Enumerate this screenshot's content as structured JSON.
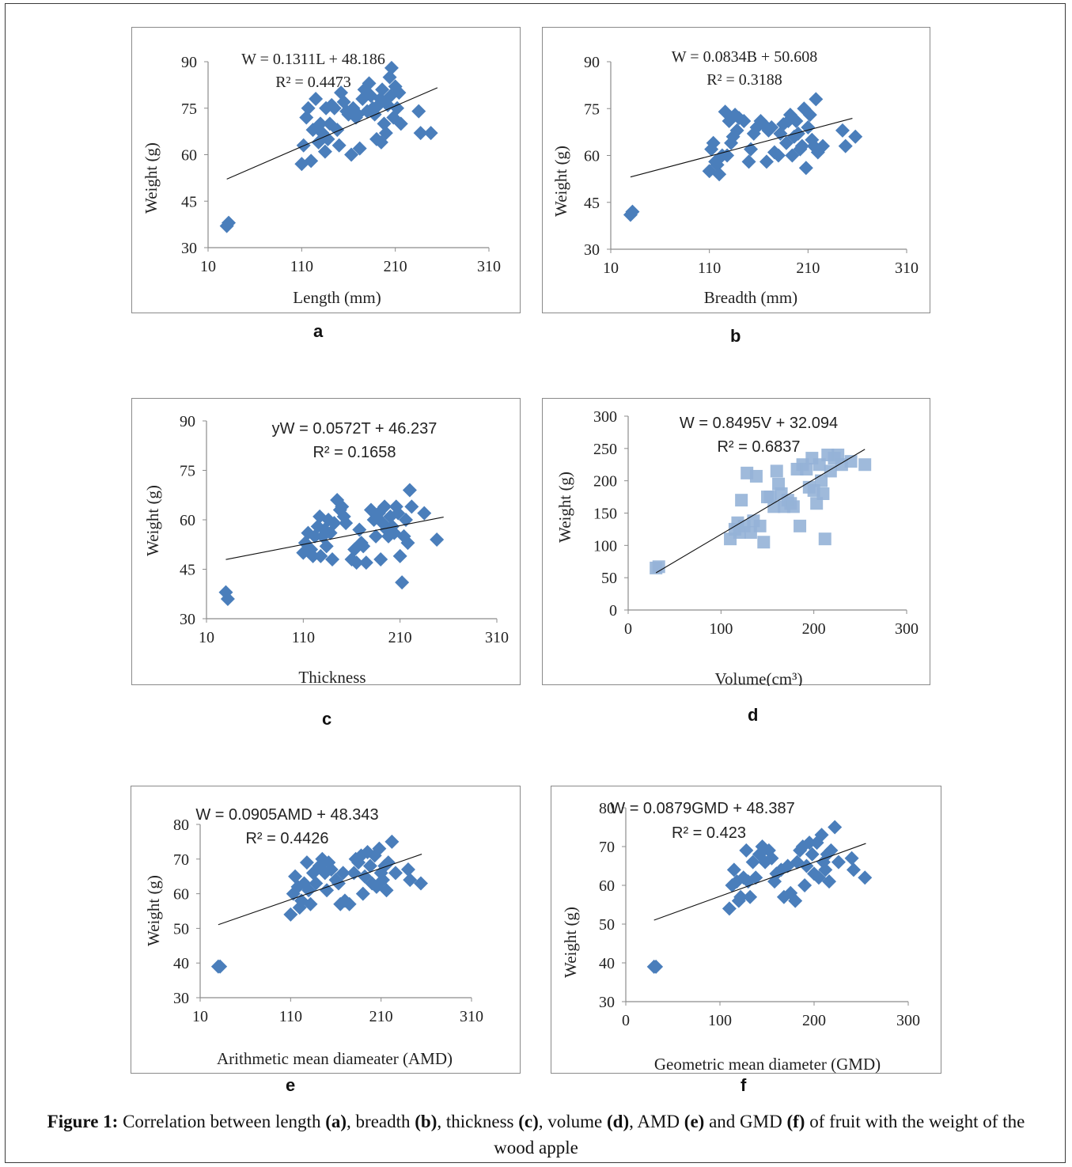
{
  "figure": {
    "caption": {
      "lead": "Figure 1:",
      "parts": [
        {
          "t": " Correlation between length "
        },
        {
          "b": "(a)"
        },
        {
          "t": ", breadth "
        },
        {
          "b": "(b)"
        },
        {
          "t": ", thickness "
        },
        {
          "b": "(c)"
        },
        {
          "t": ", volume "
        },
        {
          "b": "(d)"
        },
        {
          "t": ", AMD "
        },
        {
          "b": "(e)"
        },
        {
          "t": " and GMD "
        },
        {
          "b": "(f)"
        },
        {
          "t": " of fruit with the weight of the wood apple"
        }
      ]
    }
  },
  "colors": {
    "marker": "#4a7ebb",
    "marker_light": "#95b3d7",
    "trend": "#111111",
    "axis": "#8c8c8c"
  },
  "chart_data": [
    {
      "id": "a",
      "panel_letter": "a",
      "type": "scatter",
      "marker": "diamond",
      "title": "",
      "xlabel": "Length (mm)",
      "ylabel": "Weight (g)",
      "xlim": [
        10,
        310
      ],
      "ylim": [
        30,
        90
      ],
      "xticks": [
        "10",
        "110",
        "210",
        "310"
      ],
      "yticks": [
        "30",
        "45",
        "60",
        "75",
        "90"
      ],
      "eq_line1": "W = 0.1311L + 48.186",
      "eq_line2": "R² = 0.4473",
      "trend": {
        "slope": 0.1311,
        "intercept": 48.186,
        "x_range": [
          30,
          255
        ]
      },
      "points": [
        [
          30,
          37
        ],
        [
          32,
          38
        ],
        [
          110,
          57
        ],
        [
          112,
          63
        ],
        [
          115,
          72
        ],
        [
          117,
          75
        ],
        [
          120,
          58
        ],
        [
          122,
          68
        ],
        [
          125,
          78
        ],
        [
          128,
          64
        ],
        [
          130,
          70
        ],
        [
          132,
          67
        ],
        [
          135,
          61
        ],
        [
          136,
          75
        ],
        [
          138,
          65
        ],
        [
          140,
          70
        ],
        [
          142,
          76
        ],
        [
          145,
          75
        ],
        [
          148,
          68
        ],
        [
          150,
          63
        ],
        [
          152,
          80
        ],
        [
          155,
          77
        ],
        [
          158,
          74
        ],
        [
          160,
          73
        ],
        [
          163,
          60
        ],
        [
          165,
          75
        ],
        [
          168,
          72
        ],
        [
          170,
          73
        ],
        [
          172,
          62
        ],
        [
          175,
          78
        ],
        [
          177,
          81
        ],
        [
          180,
          74
        ],
        [
          182,
          83
        ],
        [
          184,
          79
        ],
        [
          186,
          75
        ],
        [
          188,
          73
        ],
        [
          190,
          65
        ],
        [
          192,
          76
        ],
        [
          194,
          78
        ],
        [
          195,
          64
        ],
        [
          196,
          81
        ],
        [
          198,
          70
        ],
        [
          200,
          67
        ],
        [
          202,
          76
        ],
        [
          204,
          85
        ],
        [
          205,
          79
        ],
        [
          206,
          88
        ],
        [
          208,
          72
        ],
        [
          210,
          82
        ],
        [
          212,
          75
        ],
        [
          214,
          80
        ],
        [
          216,
          70
        ],
        [
          235,
          74
        ],
        [
          237,
          67
        ],
        [
          248,
          67
        ]
      ]
    },
    {
      "id": "b",
      "panel_letter": "b",
      "type": "scatter",
      "marker": "diamond",
      "title": "",
      "xlabel": "Breadth (mm)",
      "ylabel": "Weight (g)",
      "xlim": [
        10,
        310
      ],
      "ylim": [
        30,
        90
      ],
      "xticks": [
        "10",
        "110",
        "210",
        "310"
      ],
      "yticks": [
        "30",
        "45",
        "60",
        "75",
        "90"
      ],
      "eq_line1": "W = 0.0834B + 50.608",
      "eq_line2": "R² = 0.3188",
      "trend": {
        "slope": 0.0834,
        "intercept": 50.608,
        "x_range": [
          30,
          255
        ]
      },
      "points": [
        [
          30,
          41
        ],
        [
          32,
          42
        ],
        [
          110,
          55
        ],
        [
          112,
          62
        ],
        [
          114,
          64
        ],
        [
          116,
          58
        ],
        [
          118,
          57
        ],
        [
          120,
          54
        ],
        [
          123,
          60
        ],
        [
          126,
          74
        ],
        [
          128,
          60
        ],
        [
          130,
          71
        ],
        [
          132,
          64
        ],
        [
          134,
          66
        ],
        [
          136,
          73
        ],
        [
          138,
          68
        ],
        [
          140,
          72
        ],
        [
          145,
          71
        ],
        [
          150,
          58
        ],
        [
          152,
          62
        ],
        [
          155,
          67
        ],
        [
          158,
          69
        ],
        [
          162,
          71
        ],
        [
          165,
          70
        ],
        [
          168,
          58
        ],
        [
          170,
          68
        ],
        [
          173,
          69
        ],
        [
          176,
          61
        ],
        [
          180,
          60
        ],
        [
          182,
          67
        ],
        [
          185,
          70
        ],
        [
          188,
          64
        ],
        [
          190,
          71
        ],
        [
          192,
          73
        ],
        [
          194,
          60
        ],
        [
          196,
          66
        ],
        [
          198,
          71
        ],
        [
          200,
          67
        ],
        [
          202,
          62
        ],
        [
          204,
          63
        ],
        [
          206,
          75
        ],
        [
          208,
          56
        ],
        [
          210,
          69
        ],
        [
          212,
          73
        ],
        [
          214,
          65
        ],
        [
          216,
          63
        ],
        [
          218,
          78
        ],
        [
          220,
          61
        ],
        [
          225,
          63
        ],
        [
          245,
          68
        ],
        [
          248,
          63
        ],
        [
          258,
          66
        ]
      ]
    },
    {
      "id": "c",
      "panel_letter": "c",
      "type": "scatter",
      "marker": "diamond",
      "title": "",
      "xlabel": "Thickness",
      "ylabel": "Weight (g)",
      "xlim": [
        10,
        310
      ],
      "ylim": [
        30,
        90
      ],
      "xticks": [
        "10",
        "110",
        "210",
        "310"
      ],
      "yticks": [
        "30",
        "45",
        "60",
        "75",
        "90"
      ],
      "eq_line1": "yW = 0.0572T + 46.237",
      "eq_line2": "R² = 0.1658",
      "trend": {
        "slope": 0.0572,
        "intercept": 46.237,
        "x_range": [
          30,
          255
        ]
      },
      "points": [
        [
          30,
          38
        ],
        [
          32,
          36
        ],
        [
          110,
          50
        ],
        [
          112,
          53
        ],
        [
          115,
          56
        ],
        [
          118,
          51
        ],
        [
          120,
          49
        ],
        [
          122,
          55
        ],
        [
          125,
          58
        ],
        [
          127,
          61
        ],
        [
          128,
          49
        ],
        [
          130,
          55
        ],
        [
          132,
          57
        ],
        [
          134,
          52
        ],
        [
          136,
          60
        ],
        [
          138,
          56
        ],
        [
          140,
          48
        ],
        [
          142,
          59
        ],
        [
          145,
          66
        ],
        [
          148,
          63
        ],
        [
          150,
          64
        ],
        [
          152,
          61
        ],
        [
          154,
          59
        ],
        [
          160,
          48
        ],
        [
          163,
          51
        ],
        [
          165,
          47
        ],
        [
          168,
          57
        ],
        [
          170,
          53
        ],
        [
          172,
          52
        ],
        [
          175,
          47
        ],
        [
          180,
          63
        ],
        [
          183,
          60
        ],
        [
          185,
          55
        ],
        [
          188,
          62
        ],
        [
          190,
          48
        ],
        [
          192,
          59
        ],
        [
          194,
          64
        ],
        [
          196,
          57
        ],
        [
          198,
          55
        ],
        [
          200,
          61
        ],
        [
          202,
          58
        ],
        [
          204,
          56
        ],
        [
          206,
          64
        ],
        [
          208,
          62
        ],
        [
          210,
          49
        ],
        [
          212,
          41
        ],
        [
          214,
          55
        ],
        [
          216,
          60
        ],
        [
          218,
          53
        ],
        [
          220,
          69
        ],
        [
          222,
          64
        ],
        [
          235,
          62
        ],
        [
          248,
          54
        ]
      ]
    },
    {
      "id": "d",
      "panel_letter": "d",
      "type": "scatter",
      "marker": "square",
      "title": "",
      "xlabel": "Volume(cm³)",
      "ylabel": "Weight (g)",
      "xlim": [
        0,
        300
      ],
      "ylim": [
        0,
        300
      ],
      "xticks": [
        "0",
        "100",
        "200",
        "300"
      ],
      "yticks": [
        "0",
        "50",
        "100",
        "150",
        "200",
        "250",
        "300"
      ],
      "eq_line1": "W = 0.8495V + 32.094",
      "eq_line2": "R² = 0.6837",
      "trend": {
        "slope": 0.8495,
        "intercept": 32.094,
        "x_range": [
          30,
          255
        ]
      },
      "points": [
        [
          30,
          65
        ],
        [
          33,
          67
        ],
        [
          110,
          110
        ],
        [
          115,
          125
        ],
        [
          118,
          135
        ],
        [
          120,
          120
        ],
        [
          122,
          170
        ],
        [
          125,
          130
        ],
        [
          128,
          212
        ],
        [
          132,
          120
        ],
        [
          135,
          138
        ],
        [
          138,
          207
        ],
        [
          142,
          130
        ],
        [
          146,
          105
        ],
        [
          150,
          175
        ],
        [
          153,
          175
        ],
        [
          157,
          160
        ],
        [
          160,
          215
        ],
        [
          162,
          195
        ],
        [
          165,
          180
        ],
        [
          168,
          160
        ],
        [
          172,
          170
        ],
        [
          175,
          165
        ],
        [
          178,
          160
        ],
        [
          182,
          218
        ],
        [
          185,
          130
        ],
        [
          188,
          225
        ],
        [
          192,
          218
        ],
        [
          195,
          190
        ],
        [
          198,
          235
        ],
        [
          200,
          185
        ],
        [
          203,
          165
        ],
        [
          206,
          225
        ],
        [
          208,
          200
        ],
        [
          210,
          180
        ],
        [
          212,
          110
        ],
        [
          215,
          240
        ],
        [
          218,
          215
        ],
        [
          222,
          235
        ],
        [
          226,
          240
        ],
        [
          230,
          225
        ],
        [
          240,
          230
        ],
        [
          255,
          225
        ]
      ]
    },
    {
      "id": "e",
      "panel_letter": "e",
      "type": "scatter",
      "marker": "diamond",
      "title": "",
      "xlabel": "Arithmetic mean diameater (AMD)",
      "ylabel": "Weight (g)",
      "xlim": [
        10,
        310
      ],
      "ylim": [
        30,
        80
      ],
      "xticks": [
        "10",
        "110",
        "210",
        "310"
      ],
      "yticks": [
        "30",
        "40",
        "50",
        "60",
        "70",
        "80"
      ],
      "eq_line1": "W = 0.0905AMD + 48.343",
      "eq_line2": "R² = 0.4426",
      "trend": {
        "slope": 0.0905,
        "intercept": 48.343,
        "x_range": [
          30,
          255
        ]
      },
      "points": [
        [
          30,
          39
        ],
        [
          32,
          39
        ],
        [
          110,
          54
        ],
        [
          113,
          60
        ],
        [
          115,
          65
        ],
        [
          118,
          62
        ],
        [
          120,
          56
        ],
        [
          122,
          58
        ],
        [
          125,
          63
        ],
        [
          128,
          69
        ],
        [
          130,
          61
        ],
        [
          132,
          57
        ],
        [
          135,
          66
        ],
        [
          138,
          63
        ],
        [
          142,
          68
        ],
        [
          145,
          70
        ],
        [
          148,
          66
        ],
        [
          150,
          61
        ],
        [
          152,
          69
        ],
        [
          155,
          67
        ],
        [
          160,
          64
        ],
        [
          163,
          63
        ],
        [
          165,
          57
        ],
        [
          168,
          66
        ],
        [
          170,
          58
        ],
        [
          175,
          57
        ],
        [
          180,
          66
        ],
        [
          182,
          70
        ],
        [
          185,
          69
        ],
        [
          188,
          71
        ],
        [
          190,
          60
        ],
        [
          192,
          65
        ],
        [
          195,
          72
        ],
        [
          198,
          68
        ],
        [
          200,
          63
        ],
        [
          203,
          71
        ],
        [
          205,
          62
        ],
        [
          208,
          73
        ],
        [
          210,
          66
        ],
        [
          212,
          64
        ],
        [
          214,
          68
        ],
        [
          216,
          61
        ],
        [
          218,
          69
        ],
        [
          222,
          75
        ],
        [
          226,
          66
        ],
        [
          240,
          67
        ],
        [
          242,
          64
        ],
        [
          254,
          63
        ]
      ]
    },
    {
      "id": "f",
      "panel_letter": "f",
      "type": "scatter",
      "marker": "diamond",
      "title": "",
      "xlabel": "Geometric mean diameter (GMD)",
      "ylabel": "Weight (g)",
      "xlim": [
        0,
        300
      ],
      "ylim": [
        30,
        80
      ],
      "xticks": [
        "0",
        "100",
        "200",
        "300"
      ],
      "yticks": [
        "30",
        "40",
        "50",
        "60",
        "70",
        "80"
      ],
      "eq_line1": "W = 0.0879GMD + 48.387",
      "eq_line2": "R² = 0.423",
      "trend": {
        "slope": 0.0879,
        "intercept": 48.387,
        "x_range": [
          30,
          255
        ]
      },
      "points": [
        [
          30,
          39
        ],
        [
          32,
          39
        ],
        [
          110,
          54
        ],
        [
          113,
          60
        ],
        [
          115,
          64
        ],
        [
          118,
          61
        ],
        [
          120,
          56
        ],
        [
          122,
          57
        ],
        [
          125,
          62
        ],
        [
          128,
          69
        ],
        [
          130,
          61
        ],
        [
          132,
          57
        ],
        [
          135,
          66
        ],
        [
          138,
          62
        ],
        [
          142,
          68
        ],
        [
          145,
          70
        ],
        [
          148,
          66
        ],
        [
          152,
          69
        ],
        [
          155,
          67
        ],
        [
          158,
          61
        ],
        [
          160,
          63
        ],
        [
          165,
          64
        ],
        [
          168,
          57
        ],
        [
          172,
          65
        ],
        [
          175,
          58
        ],
        [
          180,
          56
        ],
        [
          182,
          66
        ],
        [
          185,
          69
        ],
        [
          188,
          70
        ],
        [
          190,
          60
        ],
        [
          192,
          65
        ],
        [
          195,
          71
        ],
        [
          198,
          68
        ],
        [
          200,
          63
        ],
        [
          203,
          71
        ],
        [
          205,
          62
        ],
        [
          208,
          73
        ],
        [
          210,
          66
        ],
        [
          212,
          64
        ],
        [
          214,
          68
        ],
        [
          216,
          61
        ],
        [
          218,
          69
        ],
        [
          222,
          75
        ],
        [
          226,
          66
        ],
        [
          240,
          67
        ],
        [
          242,
          64
        ],
        [
          254,
          62
        ]
      ]
    }
  ]
}
